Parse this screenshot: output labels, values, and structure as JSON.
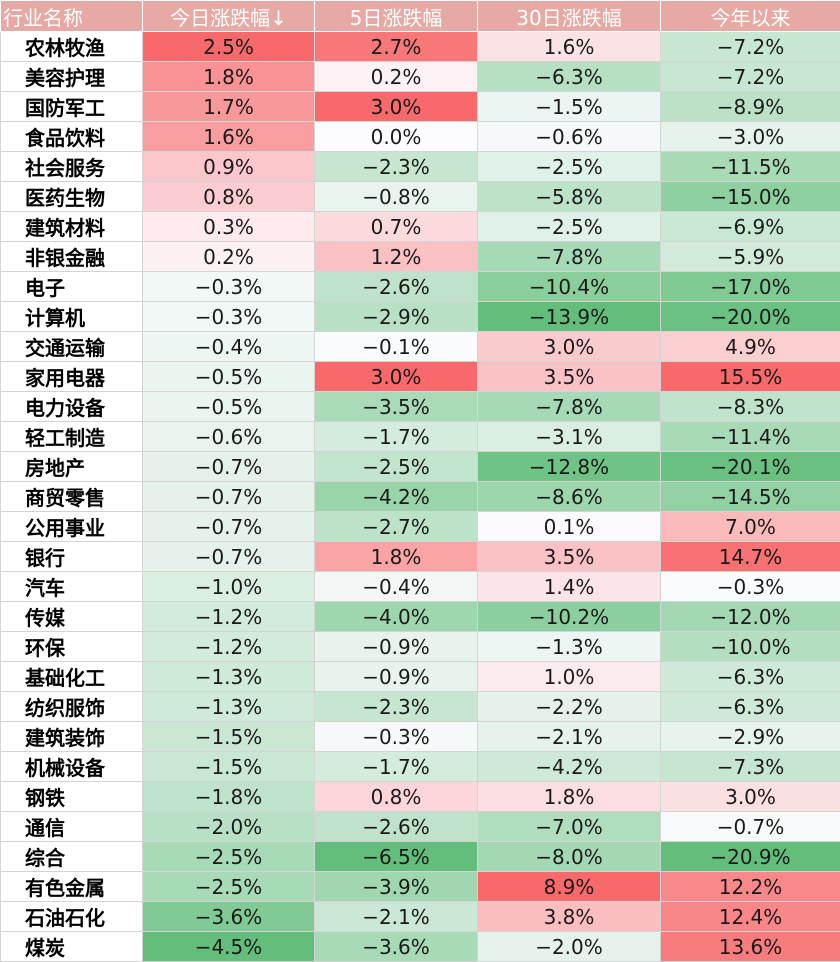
{
  "chart_data": {
    "type": "table",
    "columns": [
      "行业名称",
      "今日涨跌幅↓",
      "5日涨跌幅",
      "30日涨跌幅",
      "今年以来"
    ],
    "sort": {
      "column": "今日涨跌幅↓",
      "order": "descending"
    },
    "color_scale": {
      "positive": "#f8696b",
      "neutral": "#fcfcff",
      "negative": "#63be7b"
    },
    "rows": [
      {
        "name": "农林牧渔",
        "values": [
          2.5,
          2.7,
          1.6,
          -7.2
        ]
      },
      {
        "name": "美容护理",
        "values": [
          1.8,
          0.2,
          -6.3,
          -7.2
        ]
      },
      {
        "name": "国防军工",
        "values": [
          1.7,
          3.0,
          -1.5,
          -8.9
        ]
      },
      {
        "name": "食品饮料",
        "values": [
          1.6,
          0.0,
          -0.6,
          -3.0
        ]
      },
      {
        "name": "社会服务",
        "values": [
          0.9,
          -2.3,
          -2.5,
          -11.5
        ]
      },
      {
        "name": "医药生物",
        "values": [
          0.8,
          -0.8,
          -5.8,
          -15.0
        ]
      },
      {
        "name": "建筑材料",
        "values": [
          0.3,
          0.7,
          -2.5,
          -6.9
        ]
      },
      {
        "name": "非银金融",
        "values": [
          0.2,
          1.2,
          -7.8,
          -5.9
        ]
      },
      {
        "name": "电子",
        "values": [
          -0.3,
          -2.6,
          -10.4,
          -17.0
        ]
      },
      {
        "name": "计算机",
        "values": [
          -0.3,
          -2.9,
          -13.9,
          -20.0
        ]
      },
      {
        "name": "交通运输",
        "values": [
          -0.4,
          -0.1,
          3.0,
          4.9
        ]
      },
      {
        "name": "家用电器",
        "values": [
          -0.5,
          3.0,
          3.5,
          15.5
        ]
      },
      {
        "name": "电力设备",
        "values": [
          -0.5,
          -3.5,
          -7.8,
          -8.3
        ]
      },
      {
        "name": "轻工制造",
        "values": [
          -0.6,
          -1.7,
          -3.1,
          -11.4
        ]
      },
      {
        "name": "房地产",
        "values": [
          -0.7,
          -2.5,
          -12.8,
          -20.1
        ]
      },
      {
        "name": "商贸零售",
        "values": [
          -0.7,
          -4.2,
          -8.6,
          -14.5
        ]
      },
      {
        "name": "公用事业",
        "values": [
          -0.7,
          -2.7,
          0.1,
          7.0
        ]
      },
      {
        "name": "银行",
        "values": [
          -0.7,
          1.8,
          3.5,
          14.7
        ]
      },
      {
        "name": "汽车",
        "values": [
          -1.0,
          -0.4,
          1.4,
          -0.3
        ]
      },
      {
        "name": "传媒",
        "values": [
          -1.2,
          -4.0,
          -10.2,
          -12.0
        ]
      },
      {
        "name": "环保",
        "values": [
          -1.2,
          -0.9,
          -1.3,
          -10.0
        ]
      },
      {
        "name": "基础化工",
        "values": [
          -1.3,
          -0.9,
          1.0,
          -6.3
        ]
      },
      {
        "name": "纺织服饰",
        "values": [
          -1.3,
          -2.3,
          -2.2,
          -6.3
        ]
      },
      {
        "name": "建筑装饰",
        "values": [
          -1.5,
          -0.3,
          -2.1,
          -2.9
        ]
      },
      {
        "name": "机械设备",
        "values": [
          -1.5,
          -1.7,
          -4.2,
          -7.3
        ]
      },
      {
        "name": "钢铁",
        "values": [
          -1.8,
          0.8,
          1.8,
          3.0
        ]
      },
      {
        "name": "通信",
        "values": [
          -2.0,
          -2.6,
          -7.0,
          -0.7
        ]
      },
      {
        "name": "综合",
        "values": [
          -2.5,
          -6.5,
          -8.0,
          -20.9
        ]
      },
      {
        "name": "有色金属",
        "values": [
          -2.5,
          -3.9,
          8.9,
          12.2
        ]
      },
      {
        "name": "石油石化",
        "values": [
          -3.6,
          -2.1,
          3.8,
          12.4
        ]
      },
      {
        "name": "煤炭",
        "values": [
          -4.5,
          -3.6,
          -2.0,
          13.6
        ]
      }
    ]
  }
}
